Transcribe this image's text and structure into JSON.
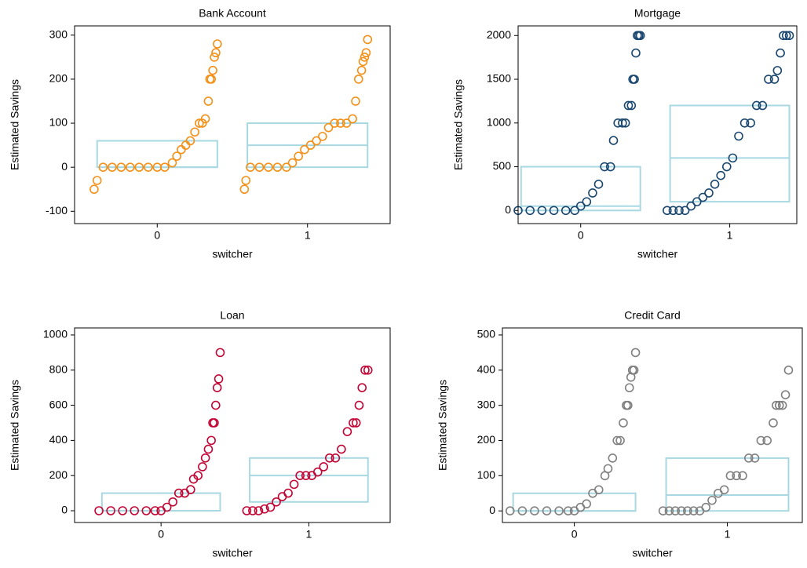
{
  "chart_data": [
    {
      "type": "scatter",
      "title": "Bank Account",
      "xlabel": "switcher",
      "ylabel": "Estimated Savings",
      "xlim": [
        -0.55,
        1.55
      ],
      "xticks": [
        0,
        1
      ],
      "ylim": [
        -128,
        321
      ],
      "yticks": [
        -100,
        0,
        100,
        200,
        300
      ],
      "box_color": "#a8d8e2",
      "series": [
        {
          "color": "#f39019",
          "x": [
            -0.42,
            -0.4,
            -0.36,
            -0.3,
            -0.24,
            -0.18,
            -0.12,
            -0.06,
            0.0,
            0.05,
            0.1,
            0.13,
            0.16,
            0.19,
            0.22,
            0.25,
            0.28,
            0.3,
            0.32,
            0.34,
            0.35,
            0.36,
            0.37,
            0.38,
            0.39,
            0.4
          ],
          "values": [
            -50,
            -30,
            0,
            0,
            0,
            0,
            0,
            0,
            0,
            0,
            10,
            25,
            40,
            50,
            60,
            80,
            100,
            100,
            110,
            150,
            200,
            200,
            220,
            250,
            260,
            280
          ]
        },
        {
          "color": "#f39019",
          "x": [
            0.58,
            0.59,
            0.62,
            0.68,
            0.74,
            0.8,
            0.86,
            0.9,
            0.94,
            0.98,
            1.02,
            1.06,
            1.1,
            1.14,
            1.18,
            1.22,
            1.26,
            1.3,
            1.32,
            1.34,
            1.36,
            1.37,
            1.38,
            1.39,
            1.4
          ],
          "values": [
            -50,
            -30,
            0,
            0,
            0,
            0,
            0,
            10,
            25,
            40,
            50,
            60,
            70,
            90,
            100,
            100,
            100,
            110,
            150,
            200,
            220,
            240,
            250,
            260,
            290
          ]
        }
      ],
      "boxes": [
        {
          "x": 0,
          "q1": 0,
          "median": 0,
          "q3": 60
        },
        {
          "x": 1,
          "q1": 0,
          "median": 50,
          "q3": 100
        }
      ]
    },
    {
      "type": "scatter",
      "title": "Mortgage",
      "xlabel": "switcher",
      "ylabel": "Estimated Savings",
      "xlim": [
        -0.42,
        1.45
      ],
      "xticks": [
        0,
        1
      ],
      "ylim": [
        -150,
        2110
      ],
      "yticks": [
        0,
        500,
        1000,
        1500,
        2000
      ],
      "box_color": "#a8d8e2",
      "series": [
        {
          "color": "#1a476f",
          "x": [
            -0.42,
            -0.34,
            -0.26,
            -0.18,
            -0.1,
            -0.04,
            0.0,
            0.04,
            0.08,
            0.12,
            0.16,
            0.2,
            0.22,
            0.25,
            0.28,
            0.3,
            0.32,
            0.34,
            0.35,
            0.36,
            0.37,
            0.38,
            0.39,
            0.4
          ],
          "values": [
            0,
            0,
            0,
            0,
            0,
            0,
            50,
            100,
            200,
            300,
            500,
            500,
            800,
            1000,
            1000,
            1000,
            1200,
            1200,
            1500,
            1500,
            1800,
            2000,
            2000,
            2000
          ]
        },
        {
          "color": "#1a476f",
          "x": [
            0.58,
            0.62,
            0.66,
            0.7,
            0.74,
            0.78,
            0.82,
            0.86,
            0.9,
            0.94,
            0.98,
            1.02,
            1.06,
            1.1,
            1.14,
            1.18,
            1.22,
            1.26,
            1.3,
            1.32,
            1.34,
            1.36,
            1.38,
            1.4
          ],
          "values": [
            0,
            0,
            0,
            0,
            50,
            100,
            150,
            200,
            300,
            400,
            500,
            600,
            850,
            1000,
            1000,
            1200,
            1200,
            1500,
            1500,
            1600,
            1800,
            2000,
            2000,
            2000
          ]
        }
      ],
      "boxes": [
        {
          "x": 0,
          "q1": 0,
          "median": 50,
          "q3": 500
        },
        {
          "x": 1,
          "q1": 100,
          "median": 600,
          "q3": 1200
        }
      ]
    },
    {
      "type": "scatter",
      "title": "Loan",
      "xlabel": "switcher",
      "ylabel": "Estimated Savings",
      "xlim": [
        -0.585,
        1.55
      ],
      "xticks": [
        0,
        1
      ],
      "ylim": [
        -67,
        1040
      ],
      "yticks": [
        0,
        200,
        400,
        600,
        800,
        1000
      ],
      "box_color": "#a8d8e2",
      "series": [
        {
          "color": "#c10534",
          "x": [
            -0.42,
            -0.34,
            -0.26,
            -0.18,
            -0.1,
            -0.04,
            0.0,
            0.04,
            0.08,
            0.12,
            0.16,
            0.2,
            0.22,
            0.25,
            0.28,
            0.3,
            0.32,
            0.34,
            0.35,
            0.36,
            0.37,
            0.38,
            0.39,
            0.4
          ],
          "values": [
            0,
            0,
            0,
            0,
            0,
            0,
            0,
            20,
            50,
            100,
            100,
            120,
            180,
            200,
            250,
            300,
            350,
            400,
            500,
            500,
            600,
            700,
            750,
            900
          ]
        },
        {
          "color": "#c10534",
          "x": [
            0.58,
            0.62,
            0.66,
            0.7,
            0.74,
            0.78,
            0.82,
            0.86,
            0.9,
            0.94,
            0.98,
            1.02,
            1.06,
            1.1,
            1.14,
            1.18,
            1.22,
            1.26,
            1.3,
            1.32,
            1.34,
            1.36,
            1.38,
            1.4
          ],
          "values": [
            0,
            0,
            0,
            10,
            20,
            50,
            80,
            100,
            150,
            200,
            200,
            200,
            220,
            250,
            300,
            300,
            350,
            450,
            500,
            500,
            600,
            700,
            800,
            800
          ]
        }
      ],
      "boxes": [
        {
          "x": 0,
          "q1": 0,
          "median": 0,
          "q3": 100
        },
        {
          "x": 1,
          "q1": 50,
          "median": 200,
          "q3": 300
        }
      ]
    },
    {
      "type": "scatter",
      "title": "Credit Card",
      "xlabel": "switcher",
      "ylabel": "Estimated Savings",
      "xlim": [
        -0.47,
        1.49
      ],
      "xticks": [
        0,
        1
      ],
      "ylim": [
        -33,
        520
      ],
      "yticks": [
        0,
        100,
        200,
        300,
        400,
        500
      ],
      "box_color": "#a8d8e2",
      "series": [
        {
          "color": "#808080",
          "x": [
            -0.42,
            -0.34,
            -0.26,
            -0.18,
            -0.1,
            -0.04,
            0.0,
            0.04,
            0.08,
            0.12,
            0.16,
            0.2,
            0.22,
            0.25,
            0.28,
            0.3,
            0.32,
            0.34,
            0.35,
            0.36,
            0.37,
            0.38,
            0.39,
            0.4
          ],
          "values": [
            0,
            0,
            0,
            0,
            0,
            0,
            0,
            10,
            20,
            50,
            60,
            100,
            120,
            150,
            200,
            200,
            250,
            300,
            300,
            350,
            380,
            400,
            400,
            450
          ]
        },
        {
          "color": "#808080",
          "x": [
            0.58,
            0.62,
            0.66,
            0.7,
            0.74,
            0.78,
            0.82,
            0.86,
            0.9,
            0.94,
            0.98,
            1.02,
            1.06,
            1.1,
            1.14,
            1.18,
            1.22,
            1.26,
            1.3,
            1.32,
            1.34,
            1.36,
            1.38,
            1.4
          ],
          "values": [
            0,
            0,
            0,
            0,
            0,
            0,
            0,
            10,
            30,
            50,
            60,
            100,
            100,
            100,
            150,
            150,
            200,
            200,
            250,
            300,
            300,
            300,
            330,
            400
          ]
        }
      ],
      "boxes": [
        {
          "x": 0,
          "q1": 0,
          "median": 0,
          "q3": 50
        },
        {
          "x": 1,
          "q1": 0,
          "median": 45,
          "q3": 150
        }
      ]
    }
  ]
}
